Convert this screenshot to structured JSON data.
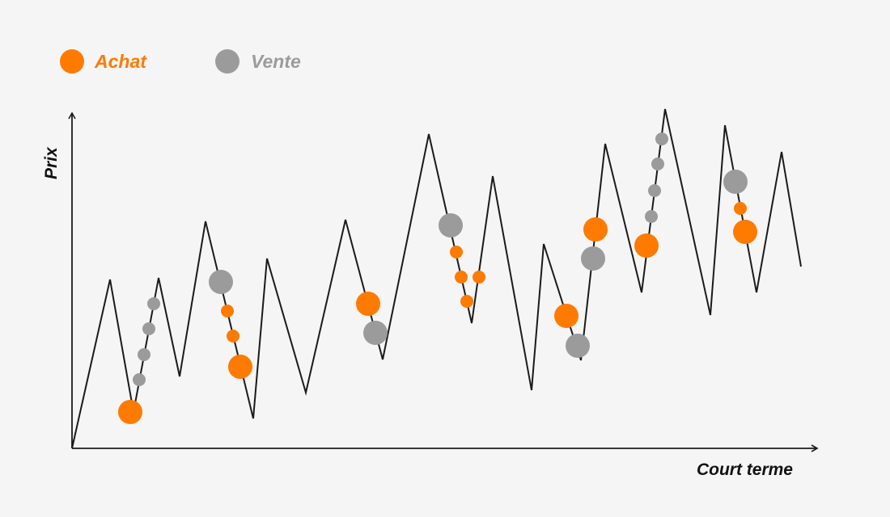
{
  "colors": {
    "buy": "#ff7a00",
    "sell": "#9b9b9b",
    "line": "#1a1a1a",
    "background": "#f5f5f5"
  },
  "legend": {
    "buy_label": "Achat",
    "sell_label": "Vente"
  },
  "axes": {
    "x_label": "Court terme",
    "y_label": "Prix"
  }
}
